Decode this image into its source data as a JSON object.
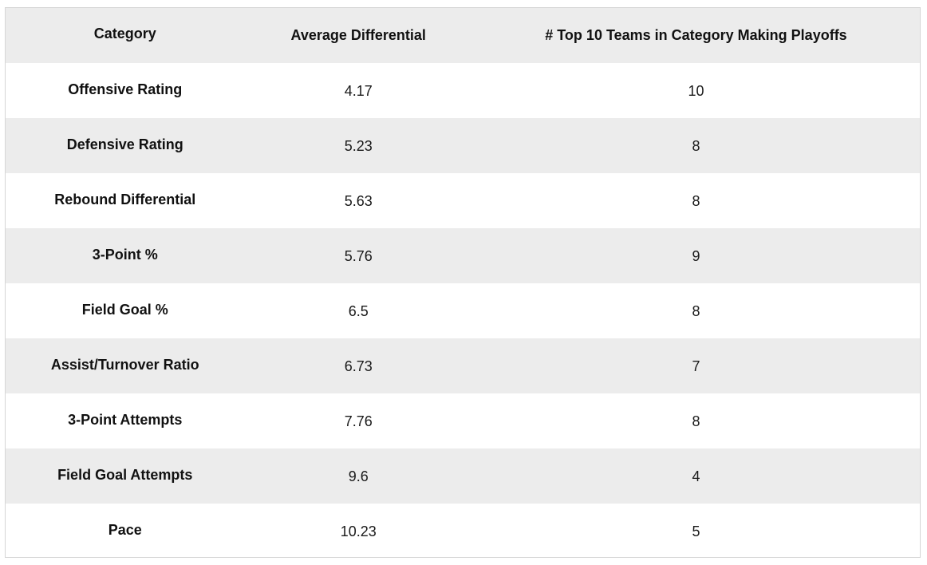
{
  "table": {
    "headers": [
      "Category",
      "Average Differential",
      "# Top 10 Teams in Category Making Playoffs"
    ],
    "rows": [
      [
        "Offensive Rating",
        "4.17",
        "10"
      ],
      [
        "Defensive Rating",
        "5.23",
        "8"
      ],
      [
        "Rebound Differential",
        "5.63",
        "8"
      ],
      [
        "3-Point %",
        "5.76",
        "9"
      ],
      [
        "Field Goal %",
        "6.5",
        "8"
      ],
      [
        "Assist/Turnover Ratio",
        "6.73",
        "7"
      ],
      [
        "3-Point Attempts",
        "7.76",
        "8"
      ],
      [
        "Field Goal Attempts",
        "9.6",
        "4"
      ],
      [
        "Pace",
        "10.23",
        "5"
      ]
    ]
  },
  "colors": {
    "header_background": "#ececec",
    "shaded_row": "#ececec",
    "plain_row": "#ffffff",
    "border": "#d6d6d6",
    "text": "#111111"
  }
}
